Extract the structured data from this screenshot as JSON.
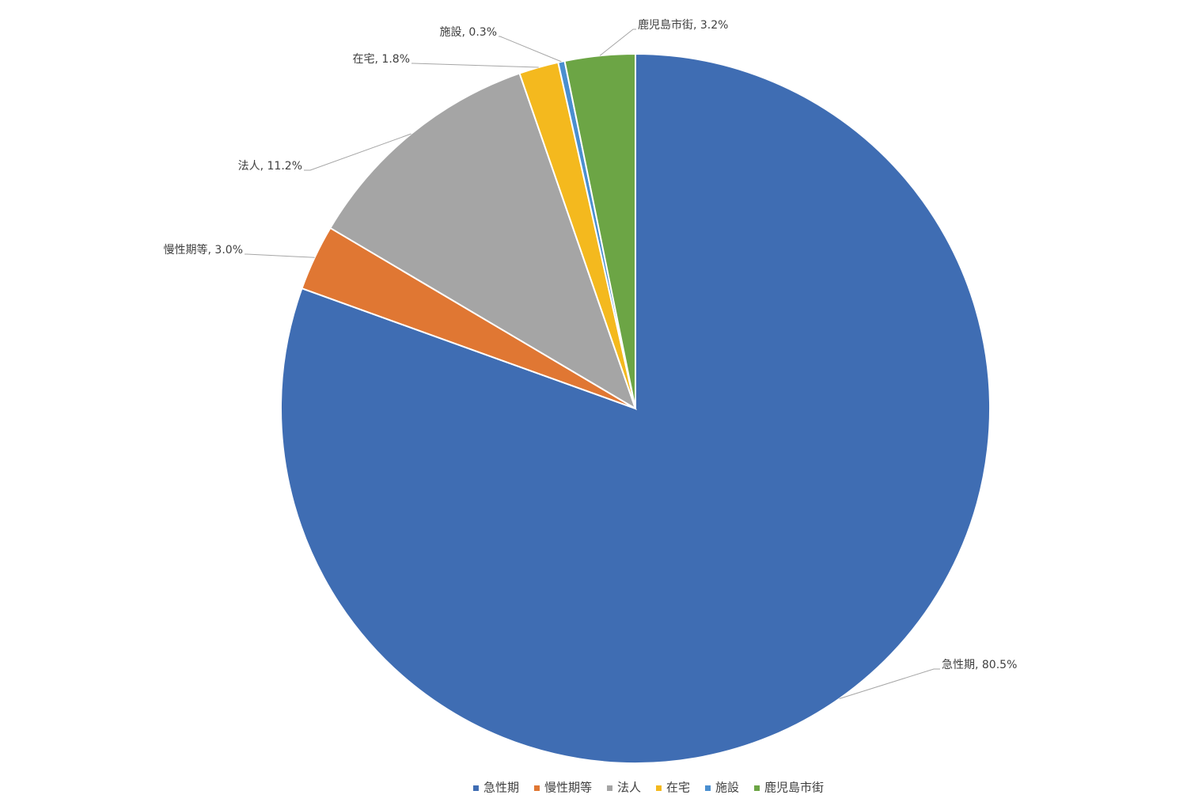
{
  "chart_data": {
    "type": "pie",
    "categories": [
      "急性期",
      "慢性期等",
      "法人",
      "在宅",
      "施設",
      "鹿児島市街"
    ],
    "values": [
      80.5,
      3.0,
      11.2,
      1.8,
      0.3,
      3.2
    ],
    "value_labels": [
      "急性期, 80.5%",
      "慢性期等, 3.0%",
      "法人, 11.2%",
      "在宅, 1.8%",
      "施設, 0.3%",
      "鹿児島市街, 3.2%"
    ],
    "colors": [
      "#3f6db3",
      "#e07733",
      "#a5a5a5",
      "#f4b91e",
      "#4a8fd0",
      "#6ca545"
    ],
    "legend": "bottom"
  }
}
